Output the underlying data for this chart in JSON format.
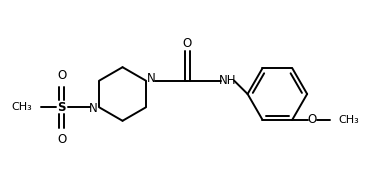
{
  "background_color": "#ffffff",
  "line_color": "#000000",
  "line_width": 1.4,
  "font_size": 8.5,
  "figsize": [
    3.88,
    1.87
  ],
  "dpi": 100,
  "xlim": [
    0,
    3.88
  ],
  "ylim": [
    0,
    1.87
  ]
}
